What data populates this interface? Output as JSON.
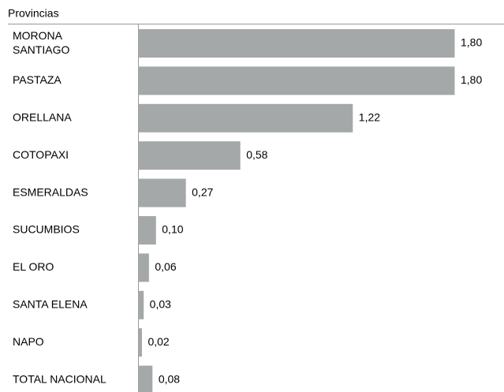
{
  "chart_data": {
    "type": "bar",
    "orientation": "horizontal",
    "title": "Provincias",
    "categories": [
      "MORONA SANTIAGO",
      "PASTAZA",
      "ORELLANA",
      "COTOPAXI",
      "ESMERALDAS",
      "SUCUMBIOS",
      "EL ORO",
      "SANTA ELENA",
      "NAPO",
      "TOTAL NACIONAL"
    ],
    "values": [
      1.8,
      1.8,
      1.22,
      0.58,
      0.27,
      0.1,
      0.06,
      0.03,
      0.02,
      0.08
    ],
    "value_labels": [
      "1,80",
      "1,80",
      "1,22",
      "0,58",
      "0,27",
      "0,10",
      "0,06",
      "0,03",
      "0,02",
      "0,08"
    ],
    "color": "#a5a8a8"
  }
}
